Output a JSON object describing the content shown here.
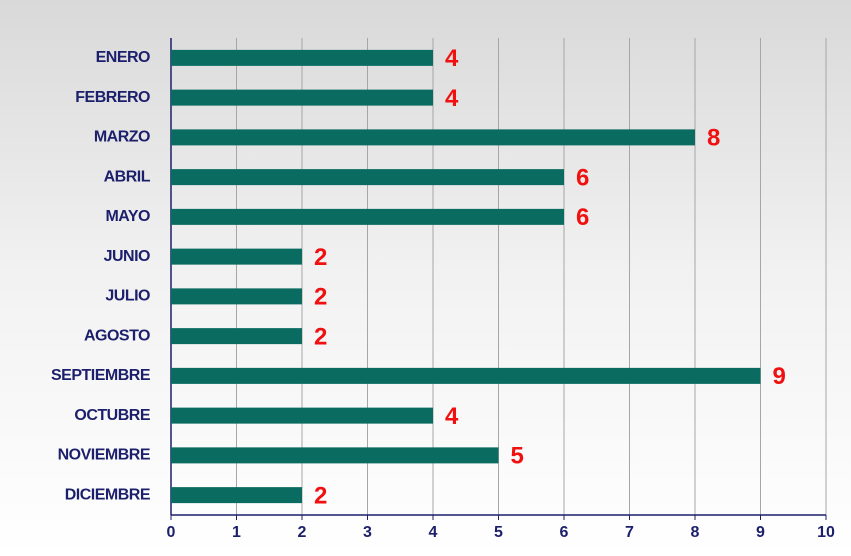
{
  "chart_data": {
    "type": "bar",
    "orientation": "horizontal",
    "categories": [
      "ENERO",
      "FEBRERO",
      "MARZO",
      "ABRIL",
      "MAYO",
      "JUNIO",
      "JULIO",
      "AGOSTO",
      "SEPTIEMBRE",
      "OCTUBRE",
      "NOVIEMBRE",
      "DICIEMBRE"
    ],
    "values": [
      4,
      4,
      8,
      6,
      6,
      2,
      2,
      2,
      9,
      4,
      5,
      2
    ],
    "color": "#0a6b60",
    "value_label_color": "#f01010",
    "xlim": [
      0,
      10
    ],
    "xticks": [
      0,
      1,
      2,
      3,
      4,
      5,
      6,
      7,
      8,
      9,
      10
    ],
    "grid": true
  }
}
